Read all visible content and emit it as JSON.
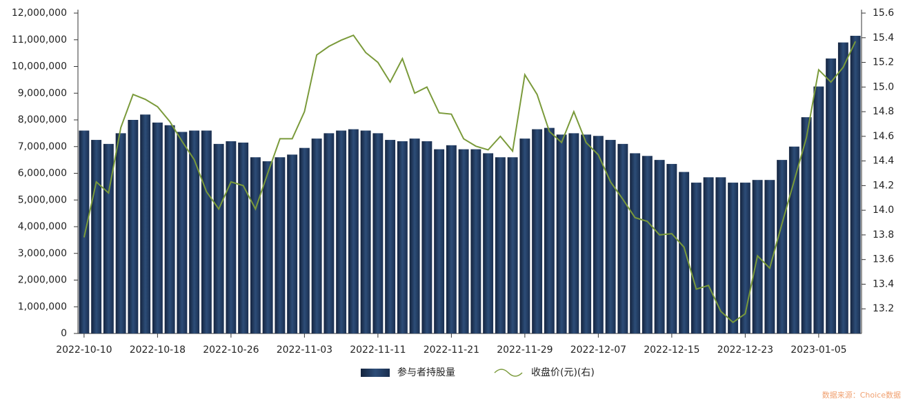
{
  "chart_data": {
    "type": "bar-line",
    "categories": [
      "2022-10-10",
      null,
      null,
      null,
      null,
      null,
      "2022-10-18",
      null,
      null,
      null,
      null,
      null,
      "2022-10-26",
      null,
      null,
      null,
      null,
      null,
      "2022-11-03",
      null,
      null,
      null,
      null,
      null,
      "2022-11-11",
      null,
      null,
      null,
      null,
      null,
      "2022-11-21",
      null,
      null,
      null,
      null,
      null,
      "2022-11-29",
      null,
      null,
      null,
      null,
      null,
      "2022-12-07",
      null,
      null,
      null,
      null,
      null,
      "2022-12-15",
      null,
      null,
      null,
      null,
      null,
      "2022-12-23",
      null,
      null,
      null,
      null,
      null,
      "2023-01-05",
      null,
      null,
      null
    ],
    "series": [
      {
        "name": "参与者持股量",
        "type": "bar",
        "color": "#1f3a5f",
        "axis": "y",
        "values": [
          7600000,
          7250000,
          7100000,
          7500000,
          8000000,
          8200000,
          7900000,
          7800000,
          7550000,
          7600000,
          7600000,
          7100000,
          7200000,
          7150000,
          6600000,
          6450000,
          6600000,
          6700000,
          6950000,
          7300000,
          7500000,
          7600000,
          7650000,
          7600000,
          7500000,
          7250000,
          7200000,
          7300000,
          7200000,
          6900000,
          7050000,
          6900000,
          6900000,
          6750000,
          6600000,
          6600000,
          7300000,
          7650000,
          7700000,
          7450000,
          7500000,
          7450000,
          7400000,
          7250000,
          7100000,
          6750000,
          6650000,
          6500000,
          6350000,
          6050000,
          5650000,
          5850000,
          5850000,
          5650000,
          5650000,
          5750000,
          5750000,
          6500000,
          7000000,
          8100000,
          9250000,
          10300000,
          10900000,
          11150000
        ]
      },
      {
        "name": "收盘价(元)(右)",
        "type": "line",
        "color": "#7a9a3a",
        "axis": "y2",
        "values": [
          13.78,
          14.23,
          14.14,
          14.67,
          14.94,
          14.9,
          14.84,
          14.72,
          14.56,
          14.41,
          14.15,
          14.01,
          14.23,
          14.2,
          14.01,
          14.3,
          14.58,
          14.58,
          14.8,
          15.26,
          15.33,
          15.38,
          15.42,
          15.28,
          15.2,
          15.04,
          15.23,
          14.95,
          15.0,
          14.79,
          14.78,
          14.58,
          14.52,
          14.49,
          14.6,
          14.48,
          15.1,
          14.94,
          14.64,
          14.55,
          14.8,
          14.55,
          14.45,
          14.23,
          14.09,
          13.94,
          13.91,
          13.8,
          13.81,
          13.7,
          13.36,
          13.39,
          13.18,
          13.09,
          13.16,
          13.63,
          13.53,
          13.89,
          14.24,
          14.59,
          15.14,
          15.04,
          15.16,
          15.37
        ]
      }
    ],
    "ylim": [
      0,
      12000000
    ],
    "yticks": [
      0,
      {
        "value": 1000000,
        "label": "1,000,000"
      },
      {
        "value": 2000000,
        "label": "2,000,000"
      },
      {
        "value": 3000000,
        "label": "3,000,000"
      },
      {
        "value": 4000000,
        "label": "4,000,000"
      },
      {
        "value": 5000000,
        "label": "5,000,000"
      },
      {
        "value": 6000000,
        "label": "6,000,000"
      },
      {
        "value": 7000000,
        "label": "7,000,000"
      },
      {
        "value": 8000000,
        "label": "8,000,000"
      },
      {
        "value": 9000000,
        "label": "9,000,000"
      },
      {
        "value": 10000000,
        "label": "10,000,000"
      },
      {
        "value": 11000000,
        "label": "11,000,000"
      },
      {
        "value": 12000000,
        "label": "12,000,000"
      }
    ],
    "y2lim": [
      13.0,
      15.6
    ],
    "y2ticks": [
      13.2,
      13.4,
      13.6,
      13.8,
      {
        "value": 14,
        "label": "14.0"
      },
      14.2,
      14.4,
      14.6,
      14.8,
      {
        "value": 15,
        "label": "15.0"
      },
      15.2,
      15.4,
      15.6
    ],
    "source": "数据来源：Choice数据"
  }
}
